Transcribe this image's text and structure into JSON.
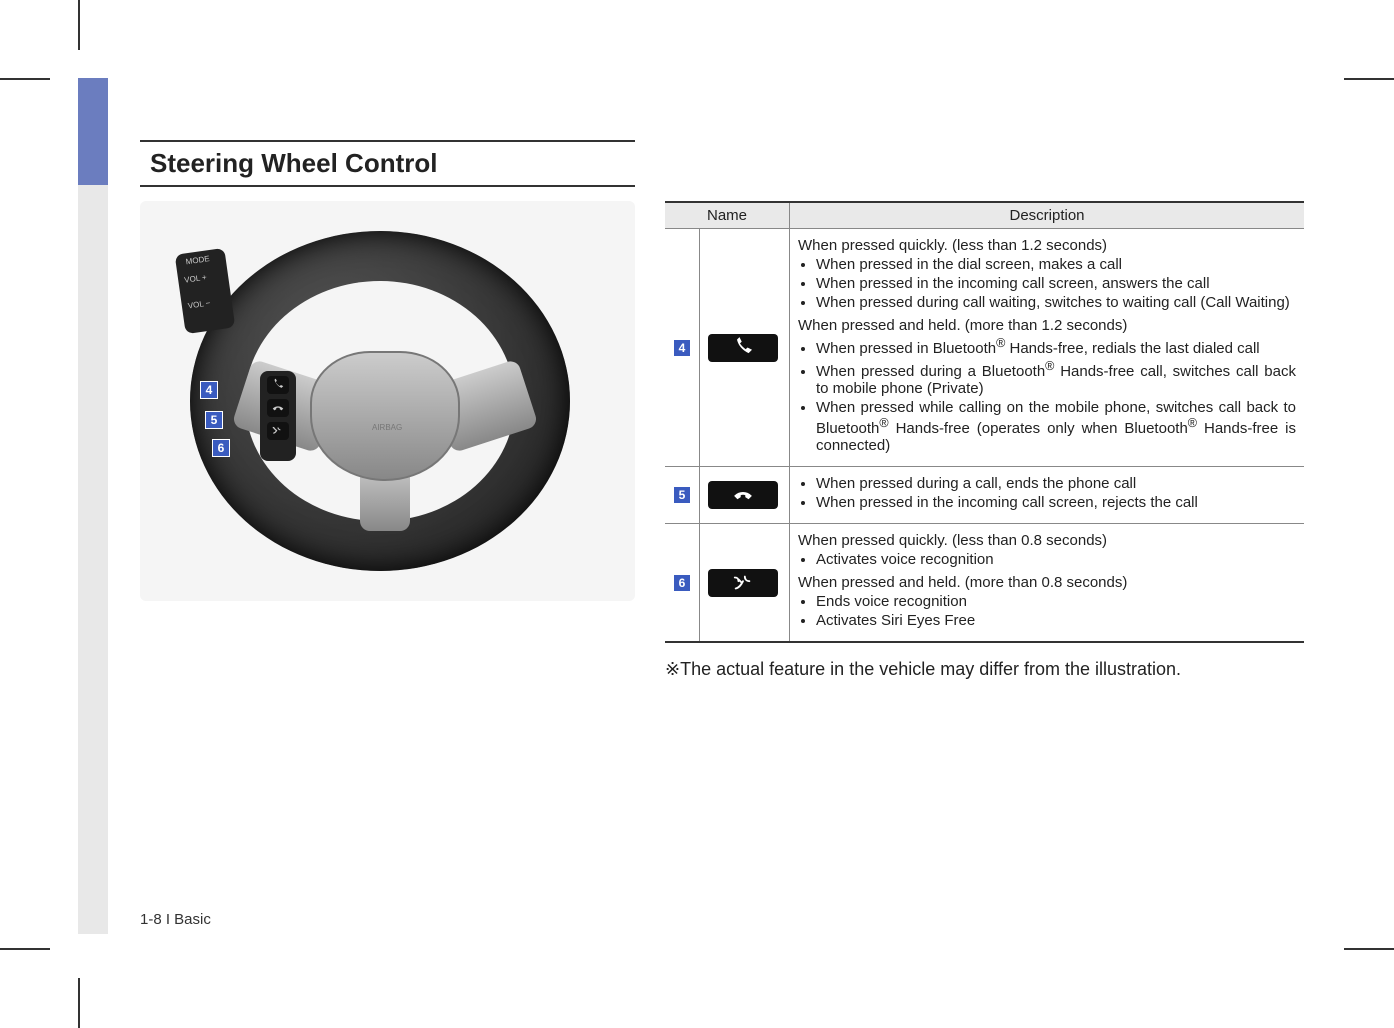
{
  "title": "Steering Wheel Control",
  "callouts": {
    "c4": "4",
    "c5": "5",
    "c6": "6"
  },
  "table": {
    "head": {
      "name": "Name",
      "desc": "Description"
    },
    "rows": [
      {
        "num": "4",
        "icon": "phone-pickup",
        "quick_head": "When pressed quickly. (less than 1.2 seconds)",
        "quick_items": [
          "When pressed in the dial screen, makes a call",
          "When pressed in the incoming call screen, answers the call",
          "When pressed during call waiting, switches to waiting call (Call Waiting)"
        ],
        "hold_head": "When pressed and held. (more than 1.2 seconds)",
        "hold_items_html": [
          "When pressed in Bluetooth<sup>®</sup> Hands-free, redials the last dialed call",
          "When pressed during a Bluetooth<sup>®</sup> Hands-free call, switches call back to mobile phone (Private)",
          "When pressed while calling on the mobile phone, switches call back to Bluetooth<sup>®</sup> Hands-free (operates only when Bluetooth<sup>®</sup> Hands-free is connected)"
        ]
      },
      {
        "num": "5",
        "icon": "phone-hangup",
        "items": [
          "When pressed during a call, ends the phone call",
          "When pressed in the incoming call screen, rejects the call"
        ]
      },
      {
        "num": "6",
        "icon": "voice",
        "quick_head": "When pressed quickly. (less than 0.8 seconds)",
        "quick_items": [
          "Activates voice recognition"
        ],
        "hold_head": "When pressed and held. (more than 0.8 seconds)",
        "hold_items": [
          "Ends voice recognition",
          "Activates Siri Eyes Free"
        ]
      }
    ]
  },
  "footnote_prefix": "※",
  "footnote": "The actual feature in the vehicle may differ from the illustration.",
  "page_footer": "1-8 I Basic",
  "colors": {
    "accent": "#3a5bbf",
    "side_active": "#6b7dbf",
    "side_inactive": "#e8e8e8",
    "header_bg": "#e9e9e9",
    "rule": "#333333"
  }
}
